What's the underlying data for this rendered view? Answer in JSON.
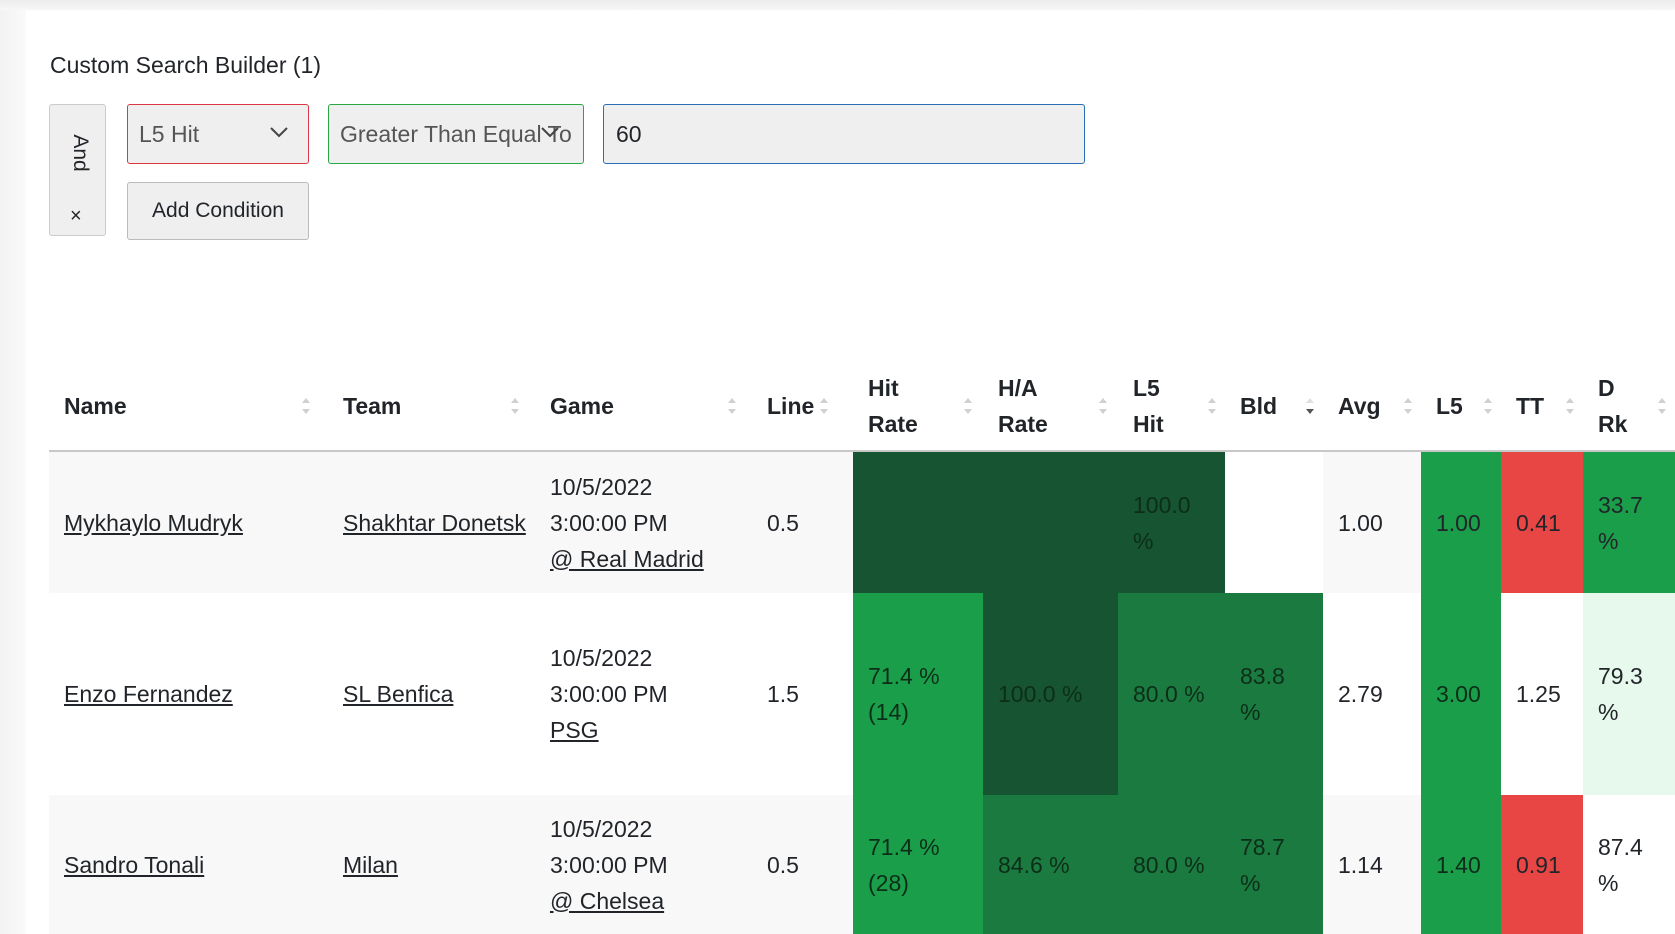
{
  "builder": {
    "title": "Custom Search Builder (1)",
    "logic": "And",
    "remove": "×",
    "field": "L5 Hit",
    "condition": "Greater Than Equal To",
    "value": "60",
    "add_condition": "Add Condition"
  },
  "table": {
    "headers": [
      "Name",
      "Team",
      "Game",
      "Line",
      "Hit Rate",
      "H/A Rate",
      "L5 Hit",
      "Bld",
      "Avg",
      "L5",
      "TT",
      "D Rk"
    ],
    "rows": [
      {
        "name": "Mykhaylo Mudryk",
        "team": "Shakhtar Donetsk",
        "game_date": "10/5/2022",
        "game_time": "3:00:00 PM",
        "game_opp": "@ Real Madrid",
        "line": "0.5",
        "hit_rate": "",
        "ha_rate": "",
        "l5_hit": "100.0 %",
        "bld": "",
        "avg": "1.00",
        "l5": "1.00",
        "tt": "0.41",
        "drk": "33.7 %"
      },
      {
        "name": "Enzo Fernandez",
        "team": "SL Benfica",
        "game_date": "10/5/2022",
        "game_time": "3:00:00 PM",
        "game_opp": "PSG",
        "line": "1.5",
        "hit_rate": "71.4 % (14)",
        "ha_rate": "100.0 %",
        "l5_hit": "80.0 %",
        "bld": "83.8 %",
        "avg": "2.79",
        "l5": "3.00",
        "tt": "1.25",
        "drk": "79.3 %"
      },
      {
        "name": "Sandro Tonali",
        "team": "Milan",
        "game_date": "10/5/2022",
        "game_time": "3:00:00 PM",
        "game_opp": "@ Chelsea",
        "line": "0.5",
        "hit_rate": "71.4 % (28)",
        "ha_rate": "84.6 %",
        "l5_hit": "80.0 %",
        "bld": "78.7 %",
        "avg": "1.14",
        "l5": "1.40",
        "tt": "0.91",
        "drk": "87.4 %"
      }
    ]
  },
  "colors": {
    "dark_green": "#175431",
    "mid_green": "#1b7a3f",
    "green": "#1a9e4a",
    "red": "#e84545",
    "light_green": "#e6f9ec",
    "stripe": "#f8f8f8"
  }
}
